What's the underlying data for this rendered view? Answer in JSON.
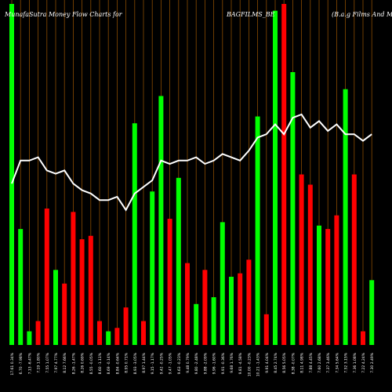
{
  "titles": {
    "left": "MunafaSutra  Money Flow  Charts for",
    "middle": "BAGFILMS_BE",
    "right": "(B.a.g Films And Med"
  },
  "chart_data": {
    "type": "bar",
    "bar_series": {
      "heights": [
        100,
        34,
        4,
        7,
        40,
        22,
        18,
        39,
        31,
        32,
        7,
        4,
        5,
        11,
        65,
        7,
        45,
        73,
        37,
        49,
        24,
        12,
        22,
        14,
        36,
        20,
        21,
        25,
        67,
        9,
        98,
        100,
        80,
        50,
        47,
        35,
        34,
        38,
        75,
        50,
        4,
        19
      ],
      "colors": [
        "green",
        "green",
        "green",
        "red",
        "red",
        "green",
        "red",
        "red",
        "red",
        "red",
        "red",
        "green",
        "red",
        "red",
        "green",
        "red",
        "green",
        "green",
        "red",
        "green",
        "red",
        "green",
        "red",
        "green",
        "green",
        "green",
        "red",
        "red",
        "green",
        "red",
        "green",
        "red",
        "green",
        "red",
        "red",
        "green",
        "red",
        "red",
        "green",
        "red",
        "red",
        "green"
      ]
    },
    "line_series": {
      "values": [
        49,
        56,
        56,
        57,
        53,
        52,
        53,
        49,
        47,
        46,
        44,
        44,
        45,
        41,
        46,
        48,
        50,
        56,
        55,
        56,
        56,
        57,
        55,
        56,
        58,
        57,
        56,
        59,
        63,
        64,
        67,
        64,
        69,
        70,
        66,
        68,
        65,
        67,
        64,
        64,
        62,
        64
      ]
    },
    "x_tick_labels": [
      "17.61 0.34%",
      "6.70 -7.98%",
      "7.13 -6.47%",
      "7.19 1.80%",
      "7.55 1.07%",
      "7.97 4.77%",
      "8.12 7.66%",
      "8.26 -1.47%",
      "8.26 0.69%",
      "8.55 -0.05%",
      "8.60 -1.11%",
      "8.69 -0.14%",
      "8.84 -0.64%",
      "8.95 0.71%",
      "8.93 -3.05%",
      "8.97 1.44%",
      "9.15 -1.17%",
      "9.42 -0.25%",
      "9.47 -1.05%",
      "9.63 -0.23%",
      "9.48 0.79%",
      "9.80 -2.48%",
      "9.88 -2.09%",
      "9.96 -1.60%",
      "9.91 -0.36%",
      "9.68 1.76%",
      "9.81 -4.58%",
      "10.00 -0.23%",
      "10.21 -1.43%",
      "9.91 4.04%",
      "8.45 2.74%",
      "8.56 5.05%",
      "8.38 -0.07%",
      "8.11 4.98%",
      "7.88 4.45%",
      "7.60 2.68%",
      "7.37 3.46%",
      "7.34 5.64%",
      "7.52 3.15%",
      "7.36 1.08%",
      "7.22 4.24%",
      "7.30 2.49%"
    ],
    "bar_colors": {
      "green": "#00ff00",
      "red": "#ff0000"
    },
    "line_color": "#ffffff",
    "grid_color": "#8a4b00"
  }
}
